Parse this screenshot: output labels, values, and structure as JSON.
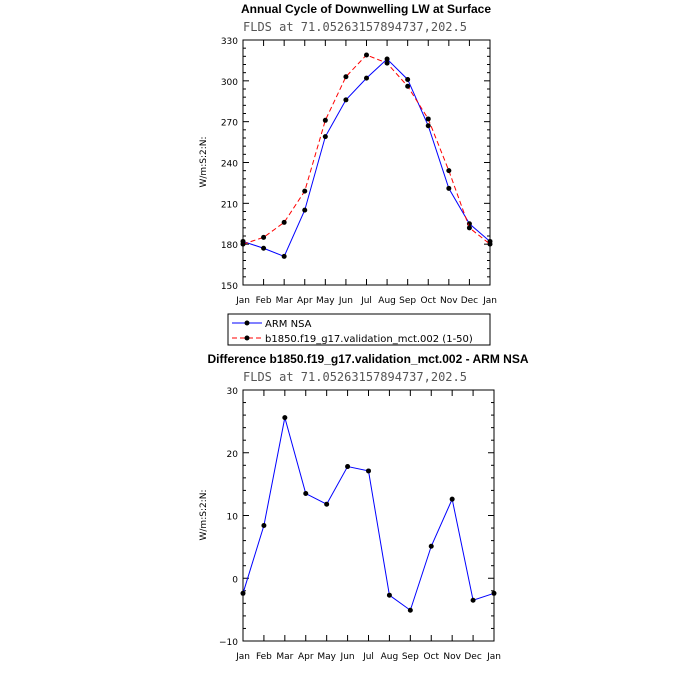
{
  "chart_data": [
    {
      "type": "line",
      "title": "Annual Cycle of Downwelling LW at Surface",
      "subtitle": "FLDS at 71.05263157894737,202.5",
      "ylabel": "W/m:S:2:N:",
      "xlabel": "",
      "categories": [
        "Jan",
        "Feb",
        "Mar",
        "Apr",
        "May",
        "Jun",
        "Jul",
        "Aug",
        "Sep",
        "Oct",
        "Nov",
        "Dec",
        "Jan"
      ],
      "ylim": [
        150,
        330
      ],
      "yticks": [
        150,
        180,
        210,
        240,
        270,
        300,
        330
      ],
      "legend_position": "bottom",
      "series": [
        {
          "name": "ARM NSA",
          "color": "#0000ff",
          "dash": "solid",
          "values": [
            182,
            177,
            171,
            205,
            259,
            286,
            302,
            316,
            301,
            267,
            221,
            195,
            182
          ]
        },
        {
          "name": "b1850.f19_g17.validation_mct.002 (1-50)",
          "color": "#ff0000",
          "dash": "dashed",
          "values": [
            180,
            185,
            196,
            219,
            271,
            303,
            319,
            313,
            296,
            272,
            234,
            192,
            180
          ]
        }
      ]
    },
    {
      "type": "line",
      "title": "Difference b1850.f19_g17.validation_mct.002 - ARM NSA",
      "subtitle": "FLDS at 71.05263157894737,202.5",
      "ylabel": "W/m:S:2:N:",
      "xlabel": "",
      "categories": [
        "Jan",
        "Feb",
        "Mar",
        "Apr",
        "May",
        "Jun",
        "Jul",
        "Aug",
        "Sep",
        "Oct",
        "Nov",
        "Dec",
        "Jan"
      ],
      "ylim": [
        -10,
        30
      ],
      "yticks": [
        -10,
        0,
        10,
        20,
        30
      ],
      "series": [
        {
          "color": "#0000ff",
          "dash": "solid",
          "values": [
            -2.4,
            8.4,
            25.6,
            13.5,
            11.8,
            17.8,
            17.1,
            -2.7,
            -5.1,
            5.1,
            12.6,
            -3.5,
            -2.4
          ]
        }
      ]
    }
  ]
}
